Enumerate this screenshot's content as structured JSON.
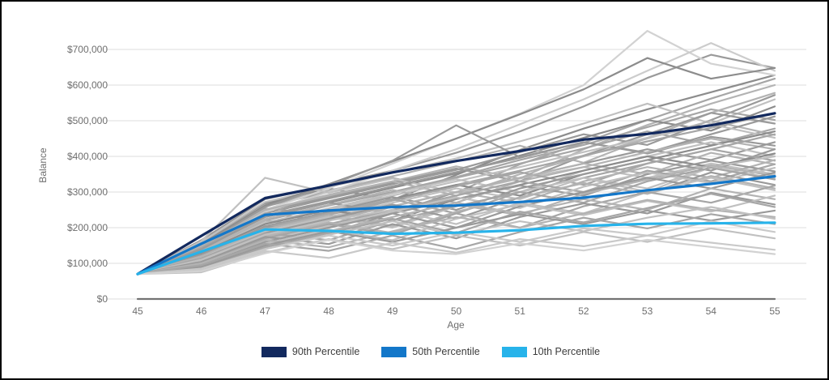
{
  "chart_data": {
    "type": "line",
    "title": "",
    "xlabel": "Age",
    "ylabel": "Balance",
    "x": [
      45,
      46,
      47,
      48,
      49,
      50,
      51,
      52,
      53,
      54,
      55
    ],
    "y_ticks": [
      "$0",
      "$100,000",
      "$200,000",
      "$300,000",
      "$400,000",
      "$500,000",
      "$600,000",
      "$700,000"
    ],
    "values_unit": "USD thousands",
    "ylim_thousands": [
      0,
      765
    ],
    "grid": true,
    "legend_position": "bottom",
    "colors": {
      "grid": "#dcdcdc",
      "axis_text": "#6e6e6e",
      "legend_text": "#3d3d3d",
      "p90": "#12295e",
      "p50": "#1377c9",
      "p10": "#27b3ea"
    },
    "series": [
      {
        "name": "90th Percentile",
        "color": "#12295e",
        "values": [
          70,
          177,
          283,
          318,
          355,
          387,
          415,
          447,
          463,
          487,
          521
        ]
      },
      {
        "name": "50th Percentile",
        "color": "#1377c9",
        "values": [
          70,
          155,
          236,
          248,
          258,
          262,
          272,
          284,
          305,
          323,
          344
        ]
      },
      {
        "name": "10th Percentile",
        "color": "#27b3ea",
        "values": [
          70,
          133,
          195,
          191,
          183,
          186,
          193,
          205,
          211,
          212,
          214
        ]
      }
    ],
    "simulations": [
      {
        "color": "#9a9a9a",
        "values": [
          70,
          165,
          280,
          320,
          360,
          410,
          470,
          540,
          620,
          685,
          648
        ]
      },
      {
        "color": "#a6a6a6",
        "values": [
          70,
          150,
          260,
          300,
          340,
          298,
          378,
          438,
          502,
          562,
          618
        ]
      },
      {
        "color": "#8c8c8c",
        "values": [
          70,
          158,
          268,
          310,
          278,
          348,
          418,
          478,
          532,
          580,
          628
        ]
      },
      {
        "color": "#b3b3b3",
        "values": [
          70,
          152,
          250,
          292,
          330,
          372,
          338,
          420,
          488,
          548,
          600
        ]
      },
      {
        "color": "#9a9a9a",
        "values": [
          70,
          146,
          240,
          282,
          322,
          362,
          412,
          462,
          432,
          502,
          572
        ]
      },
      {
        "color": "#c0c0c0",
        "values": [
          70,
          160,
          272,
          314,
          354,
          394,
          442,
          492,
          548,
          492,
          560
        ]
      },
      {
        "color": "#a6a6a6",
        "values": [
          70,
          148,
          254,
          236,
          300,
          342,
          390,
          432,
          482,
          532,
          502
        ]
      },
      {
        "color": "#8c8c8c",
        "values": [
          70,
          140,
          230,
          270,
          312,
          352,
          402,
          452,
          502,
          472,
          540
        ]
      },
      {
        "color": "#b3b3b3",
        "values": [
          70,
          154,
          264,
          304,
          344,
          386,
          430,
          382,
          452,
          522,
          578
        ]
      },
      {
        "color": "#9a9a9a",
        "values": [
          70,
          146,
          246,
          286,
          326,
          366,
          330,
          402,
          462,
          522,
          492
        ]
      },
      {
        "color": "#d2d2d2",
        "values": [
          70,
          150,
          250,
          310,
          380,
          450,
          520,
          600,
          752,
          660,
          628
        ]
      },
      {
        "color": "#cccccc",
        "values": [
          70,
          146,
          244,
          300,
          360,
          420,
          490,
          560,
          640,
          718,
          640
        ]
      },
      {
        "color": "#8c8c8c",
        "values": [
          70,
          154,
          262,
          322,
          386,
          450,
          518,
          588,
          676,
          618,
          648
        ]
      },
      {
        "color": "#9a9a9a",
        "values": [
          70,
          150,
          258,
          318,
          388,
          487,
          398,
          440,
          408,
          455,
          430
        ]
      },
      {
        "color": "#c0c0c0",
        "values": [
          70,
          162,
          340,
          298,
          338,
          298,
          338,
          370,
          340,
          380,
          350
        ]
      },
      {
        "color": "#a6a6a6",
        "values": [
          70,
          136,
          220,
          262,
          300,
          340,
          380,
          422,
          470,
          432,
          478
        ]
      },
      {
        "color": "#b3b3b3",
        "values": [
          70,
          148,
          250,
          290,
          330,
          290,
          350,
          400,
          450,
          500,
          460
        ]
      },
      {
        "color": "#9a9a9a",
        "values": [
          70,
          140,
          234,
          274,
          316,
          356,
          396,
          440,
          410,
          462,
          512
        ]
      },
      {
        "color": "#c0c0c0",
        "values": [
          70,
          130,
          210,
          250,
          290,
          330,
          370,
          412,
          452,
          490,
          452
        ]
      },
      {
        "color": "#a6a6a6",
        "values": [
          70,
          144,
          240,
          220,
          280,
          320,
          360,
          402,
          442,
          480,
          520
        ]
      },
      {
        "color": "#b3b3b3",
        "values": [
          70,
          134,
          224,
          264,
          306,
          270,
          330,
          370,
          412,
          450,
          420
        ]
      },
      {
        "color": "#8c8c8c",
        "values": [
          70,
          126,
          200,
          240,
          280,
          320,
          290,
          350,
          390,
          430,
          470
        ]
      },
      {
        "color": "#9a9a9a",
        "values": [
          70,
          140,
          230,
          270,
          240,
          300,
          340,
          380,
          420,
          390,
          440
        ]
      },
      {
        "color": "#c0c0c0",
        "values": [
          70,
          130,
          214,
          254,
          296,
          336,
          300,
          360,
          400,
          440,
          400
        ]
      },
      {
        "color": "#a6a6a6",
        "values": [
          70,
          120,
          196,
          236,
          276,
          316,
          356,
          320,
          380,
          420,
          462
        ]
      },
      {
        "color": "#b3b3b3",
        "values": [
          70,
          134,
          220,
          200,
          260,
          300,
          340,
          380,
          350,
          410,
          378
        ]
      },
      {
        "color": "#9a9a9a",
        "values": [
          70,
          124,
          204,
          244,
          286,
          250,
          310,
          350,
          390,
          360,
          420
        ]
      },
      {
        "color": "#c0c0c0",
        "values": [
          70,
          114,
          190,
          230,
          270,
          310,
          280,
          340,
          300,
          370,
          338
        ]
      },
      {
        "color": "#8c8c8c",
        "values": [
          70,
          130,
          210,
          250,
          220,
          280,
          320,
          360,
          400,
          370,
          408
        ]
      },
      {
        "color": "#a6a6a6",
        "values": [
          70,
          120,
          200,
          240,
          280,
          240,
          300,
          340,
          380,
          420,
          388
        ]
      },
      {
        "color": "#b3b3b3",
        "values": [
          70,
          110,
          180,
          220,
          260,
          300,
          270,
          330,
          370,
          340,
          390
        ]
      },
      {
        "color": "#9a9a9a",
        "values": [
          70,
          124,
          204,
          184,
          240,
          280,
          318,
          290,
          350,
          388,
          358
        ]
      },
      {
        "color": "#c0c0c0",
        "values": [
          70,
          114,
          190,
          230,
          200,
          260,
          300,
          340,
          310,
          370,
          400
        ]
      },
      {
        "color": "#a6a6a6",
        "values": [
          70,
          104,
          170,
          210,
          250,
          290,
          330,
          300,
          360,
          330,
          378
        ]
      },
      {
        "color": "#b3b3b3",
        "values": [
          70,
          120,
          195,
          235,
          205,
          265,
          235,
          295,
          335,
          375,
          345
        ]
      },
      {
        "color": "#9a9a9a",
        "values": [
          70,
          110,
          185,
          225,
          265,
          225,
          285,
          325,
          295,
          355,
          320
        ]
      },
      {
        "color": "#c0c0c0",
        "values": [
          70,
          100,
          165,
          205,
          245,
          285,
          255,
          315,
          355,
          325,
          368
        ]
      },
      {
        "color": "#a6a6a6",
        "values": [
          70,
          114,
          185,
          165,
          220,
          260,
          300,
          270,
          330,
          368,
          335
        ]
      },
      {
        "color": "#b3b3b3",
        "values": [
          70,
          104,
          175,
          215,
          185,
          245,
          285,
          325,
          295,
          345,
          310
        ]
      },
      {
        "color": "#9a9a9a",
        "values": [
          70,
          95,
          160,
          200,
          240,
          200,
          260,
          300,
          340,
          310,
          355
        ]
      },
      {
        "color": "#c0c0c0",
        "values": [
          70,
          110,
          180,
          220,
          250,
          210,
          270,
          240,
          300,
          340,
          305
        ]
      },
      {
        "color": "#a6a6a6",
        "values": [
          70,
          100,
          170,
          210,
          180,
          240,
          200,
          260,
          300,
          270,
          318
        ]
      },
      {
        "color": "#b3b3b3",
        "values": [
          70,
          90,
          150,
          190,
          230,
          270,
          240,
          280,
          250,
          310,
          280
        ]
      },
      {
        "color": "#9a9a9a",
        "values": [
          70,
          104,
          174,
          154,
          210,
          170,
          230,
          268,
          240,
          298,
          265
        ]
      },
      {
        "color": "#c0c0c0",
        "values": [
          70,
          95,
          155,
          195,
          165,
          225,
          265,
          235,
          275,
          245,
          290
        ]
      },
      {
        "color": "#a6a6a6",
        "values": [
          70,
          85,
          145,
          185,
          225,
          185,
          245,
          215,
          255,
          295,
          258
        ]
      },
      {
        "color": "#b3b3b3",
        "values": [
          70,
          100,
          165,
          145,
          190,
          230,
          200,
          240,
          278,
          250,
          230
        ]
      },
      {
        "color": "#9a9a9a",
        "values": [
          70,
          90,
          150,
          190,
          160,
          200,
          238,
          210,
          248,
          220,
          248
        ]
      },
      {
        "color": "#c0c0c0",
        "values": [
          70,
          80,
          140,
          180,
          218,
          180,
          218,
          190,
          228,
          258,
          225
        ]
      },
      {
        "color": "#a6a6a6",
        "values": [
          70,
          95,
          155,
          135,
          178,
          140,
          188,
          228,
          198,
          238,
          210
        ]
      },
      {
        "color": "#c9c9c9",
        "values": [
          70,
          85,
          140,
          178,
          150,
          188,
          160,
          198,
          178,
          218,
          188
        ]
      },
      {
        "color": "#c0c0c0",
        "values": [
          70,
          75,
          130,
          168,
          140,
          178,
          150,
          188,
          160,
          198,
          170
        ]
      },
      {
        "color": "#c9c9c9",
        "values": [
          70,
          80,
          135,
          115,
          158,
          130,
          168,
          148,
          178,
          158,
          138
        ]
      },
      {
        "color": "#d2d2d2",
        "values": [
          70,
          78,
          128,
          166,
          136,
          126,
          156,
          136,
          166,
          146,
          126
        ]
      },
      {
        "color": "#737373",
        "values": [
          0,
          0,
          0,
          0,
          0,
          0,
          0,
          0,
          0,
          0,
          0
        ]
      }
    ]
  }
}
